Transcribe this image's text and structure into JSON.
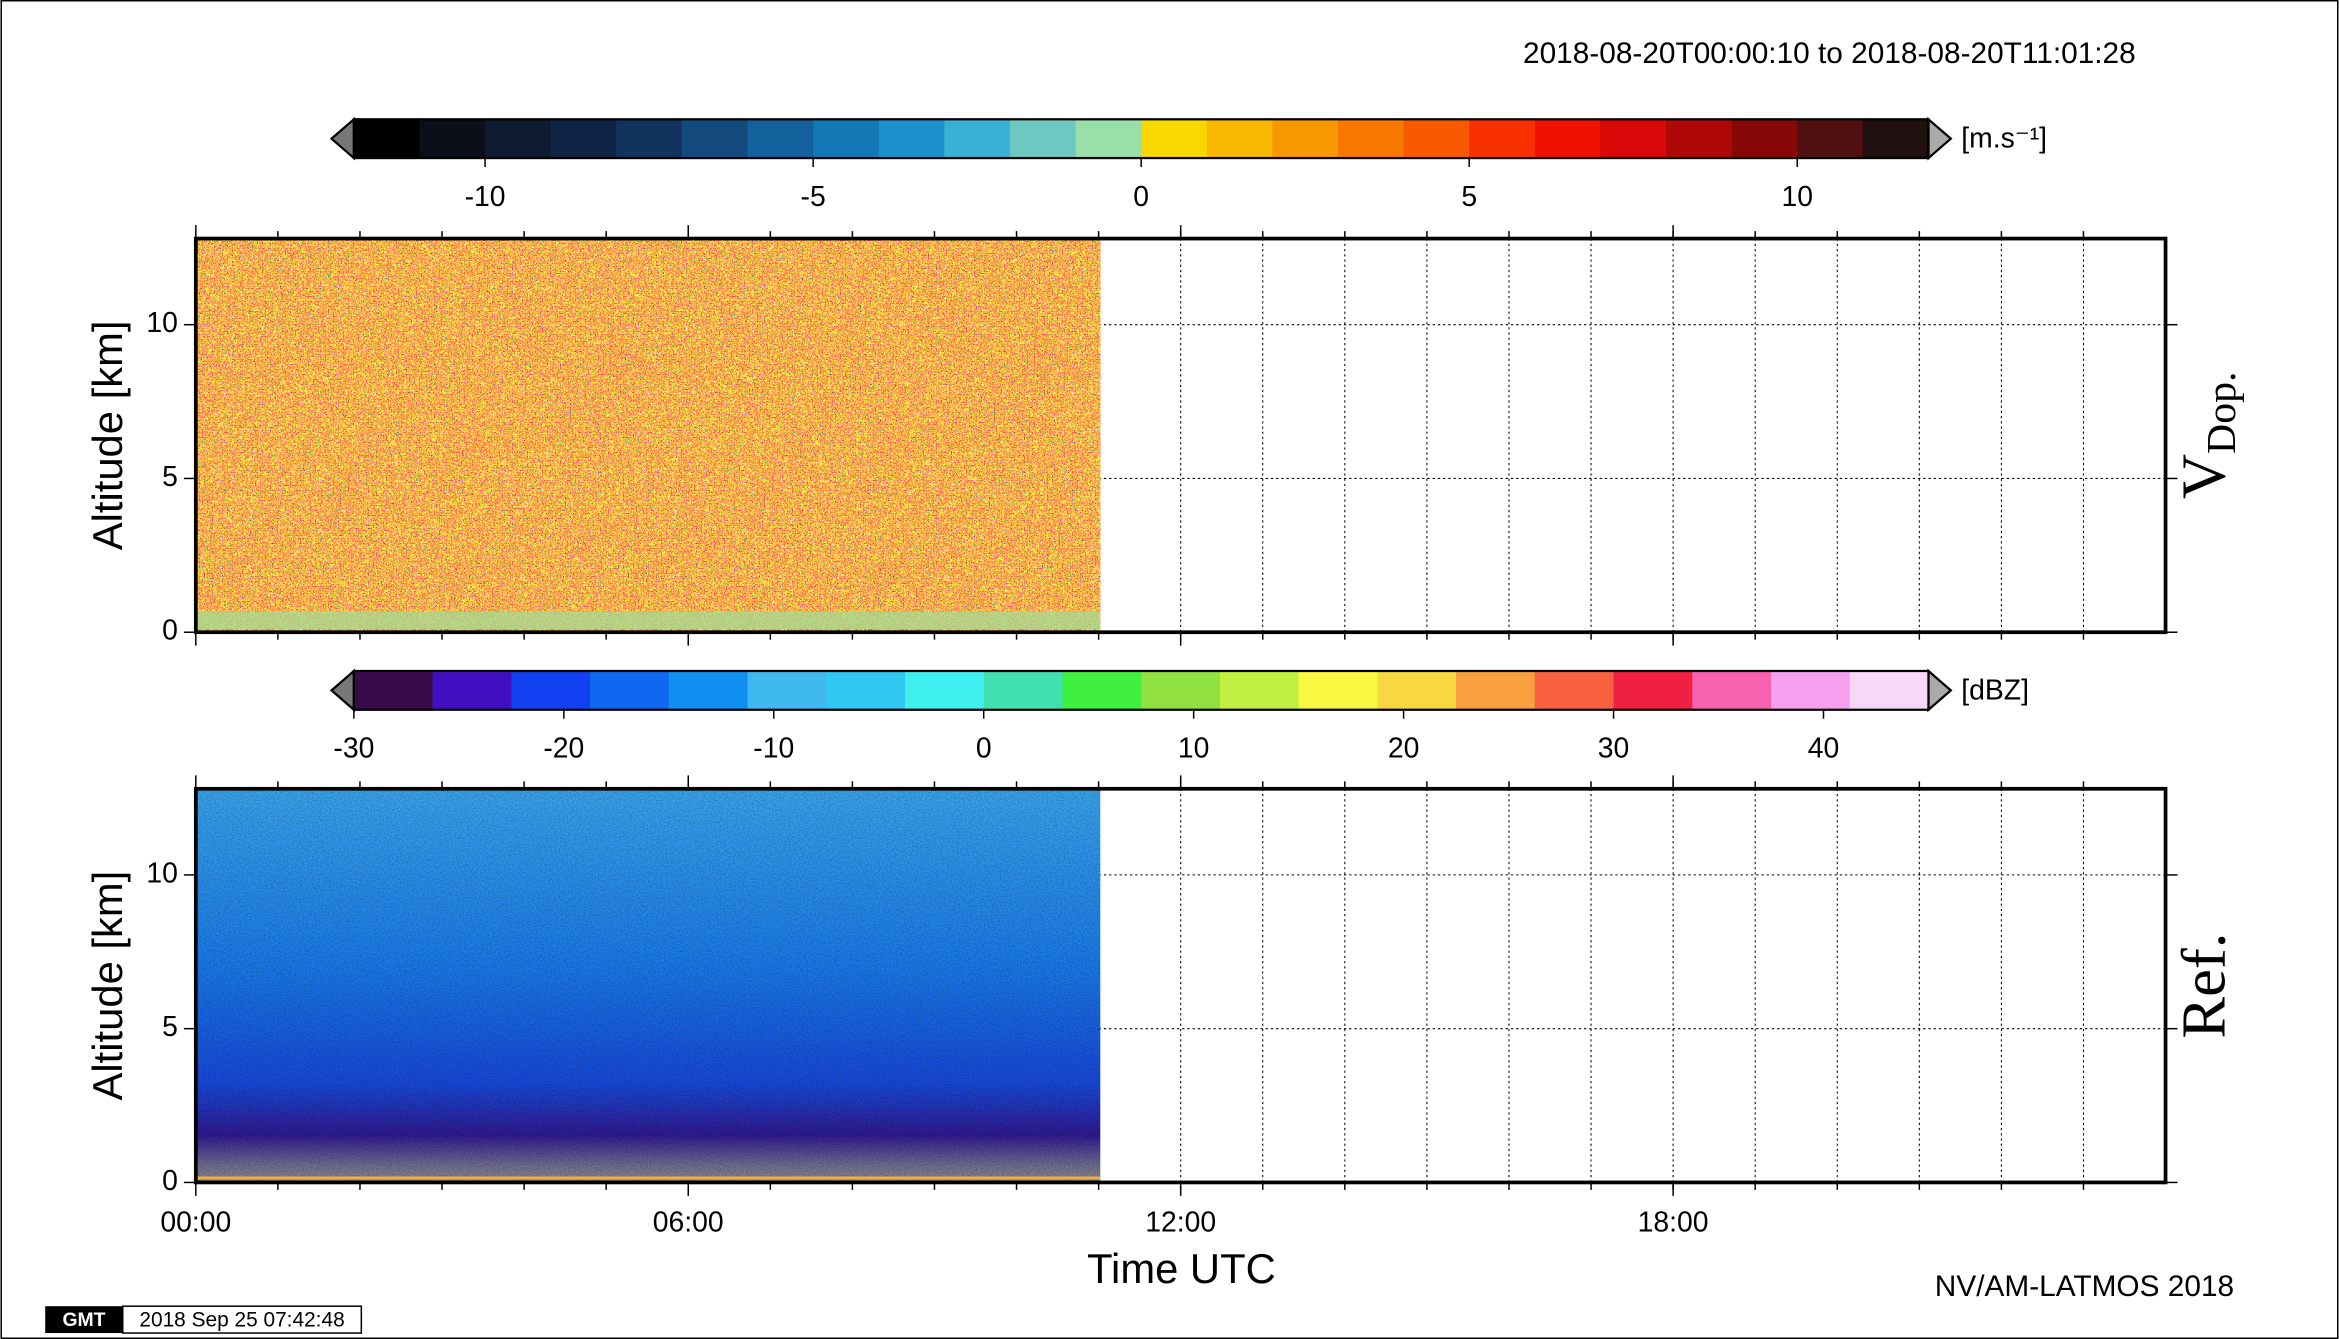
{
  "header": {
    "time_range": "2018-08-20T00:00:10 to 2018-08-20T11:01:28"
  },
  "footer": {
    "credit": "NV/AM-LATMOS 2018",
    "logo": "GMT",
    "timestamp": "2018 Sep 25 07:42:48"
  },
  "xlabel": "Time UTC",
  "chart_data": [
    {
      "type": "heatmap",
      "panel_label": "V",
      "panel_label_sub": "Dop.",
      "ylabel": "Altitude [km]",
      "xlim": [
        0,
        24
      ],
      "xticks": [
        {
          "value": 0,
          "label": "00:00"
        },
        {
          "value": 6,
          "label": "06:00"
        },
        {
          "value": 12,
          "label": "12:00"
        },
        {
          "value": 18,
          "label": "18:00"
        }
      ],
      "xgrid": [
        1,
        2,
        3,
        4,
        5,
        6,
        7,
        8,
        9,
        10,
        11,
        12,
        13,
        14,
        15,
        16,
        17,
        18,
        19,
        20,
        21,
        22,
        23
      ],
      "ylim": [
        0,
        12.8
      ],
      "yticks": [
        0,
        5,
        10
      ],
      "ygrid": [
        5,
        10
      ],
      "data_xlim": [
        0.003,
        11.02
      ],
      "colorbar": {
        "unit": "[m.s⁻¹]",
        "lim": [
          -12,
          12
        ],
        "ticks": [
          -10,
          -5,
          0,
          5,
          10
        ],
        "colors": [
          "#000000",
          "#0a0f1a",
          "#0d1a30",
          "#0f2545",
          "#11335e",
          "#124a7e",
          "#12609c",
          "#1478b6",
          "#1b92cc",
          "#3ab0d6",
          "#6cc8c0",
          "#98e0a8",
          "#f8d800",
          "#f8b800",
          "#f89800",
          "#f87800",
          "#f85800",
          "#f83000",
          "#f01000",
          "#d80808",
          "#b00808",
          "#880808",
          "#501010",
          "#201010"
        ]
      }
    },
    {
      "type": "heatmap",
      "panel_label": "Ref.",
      "ylabel": "Altitude [km]",
      "xlim": [
        0,
        24
      ],
      "xticks": [
        {
          "value": 0,
          "label": "00:00"
        },
        {
          "value": 6,
          "label": "06:00"
        },
        {
          "value": 12,
          "label": "12:00"
        },
        {
          "value": 18,
          "label": "18:00"
        }
      ],
      "xgrid": [
        1,
        2,
        3,
        4,
        5,
        6,
        7,
        8,
        9,
        10,
        11,
        12,
        13,
        14,
        15,
        16,
        17,
        18,
        19,
        20,
        21,
        22,
        23
      ],
      "ylim": [
        0,
        12.8
      ],
      "yticks": [
        0,
        5,
        10
      ],
      "ygrid": [
        5,
        10
      ],
      "data_xlim": [
        0.003,
        11.02
      ],
      "colorbar": {
        "unit": "[dBZ]",
        "lim": [
          -30,
          45
        ],
        "ticks": [
          -30,
          -20,
          -10,
          0,
          10,
          20,
          30,
          40
        ],
        "colors": [
          "#3a0a4a",
          "#4010c0",
          "#1040f0",
          "#1068f0",
          "#1090f0",
          "#40b8f0",
          "#30c8f0",
          "#40f0f0",
          "#40e0b0",
          "#40f040",
          "#90e040",
          "#c0f040",
          "#f8f840",
          "#f8d840",
          "#f8a040",
          "#f86040",
          "#f02040",
          "#f860b0",
          "#f8a0f0",
          "#f8d8f8"
        ]
      }
    }
  ]
}
